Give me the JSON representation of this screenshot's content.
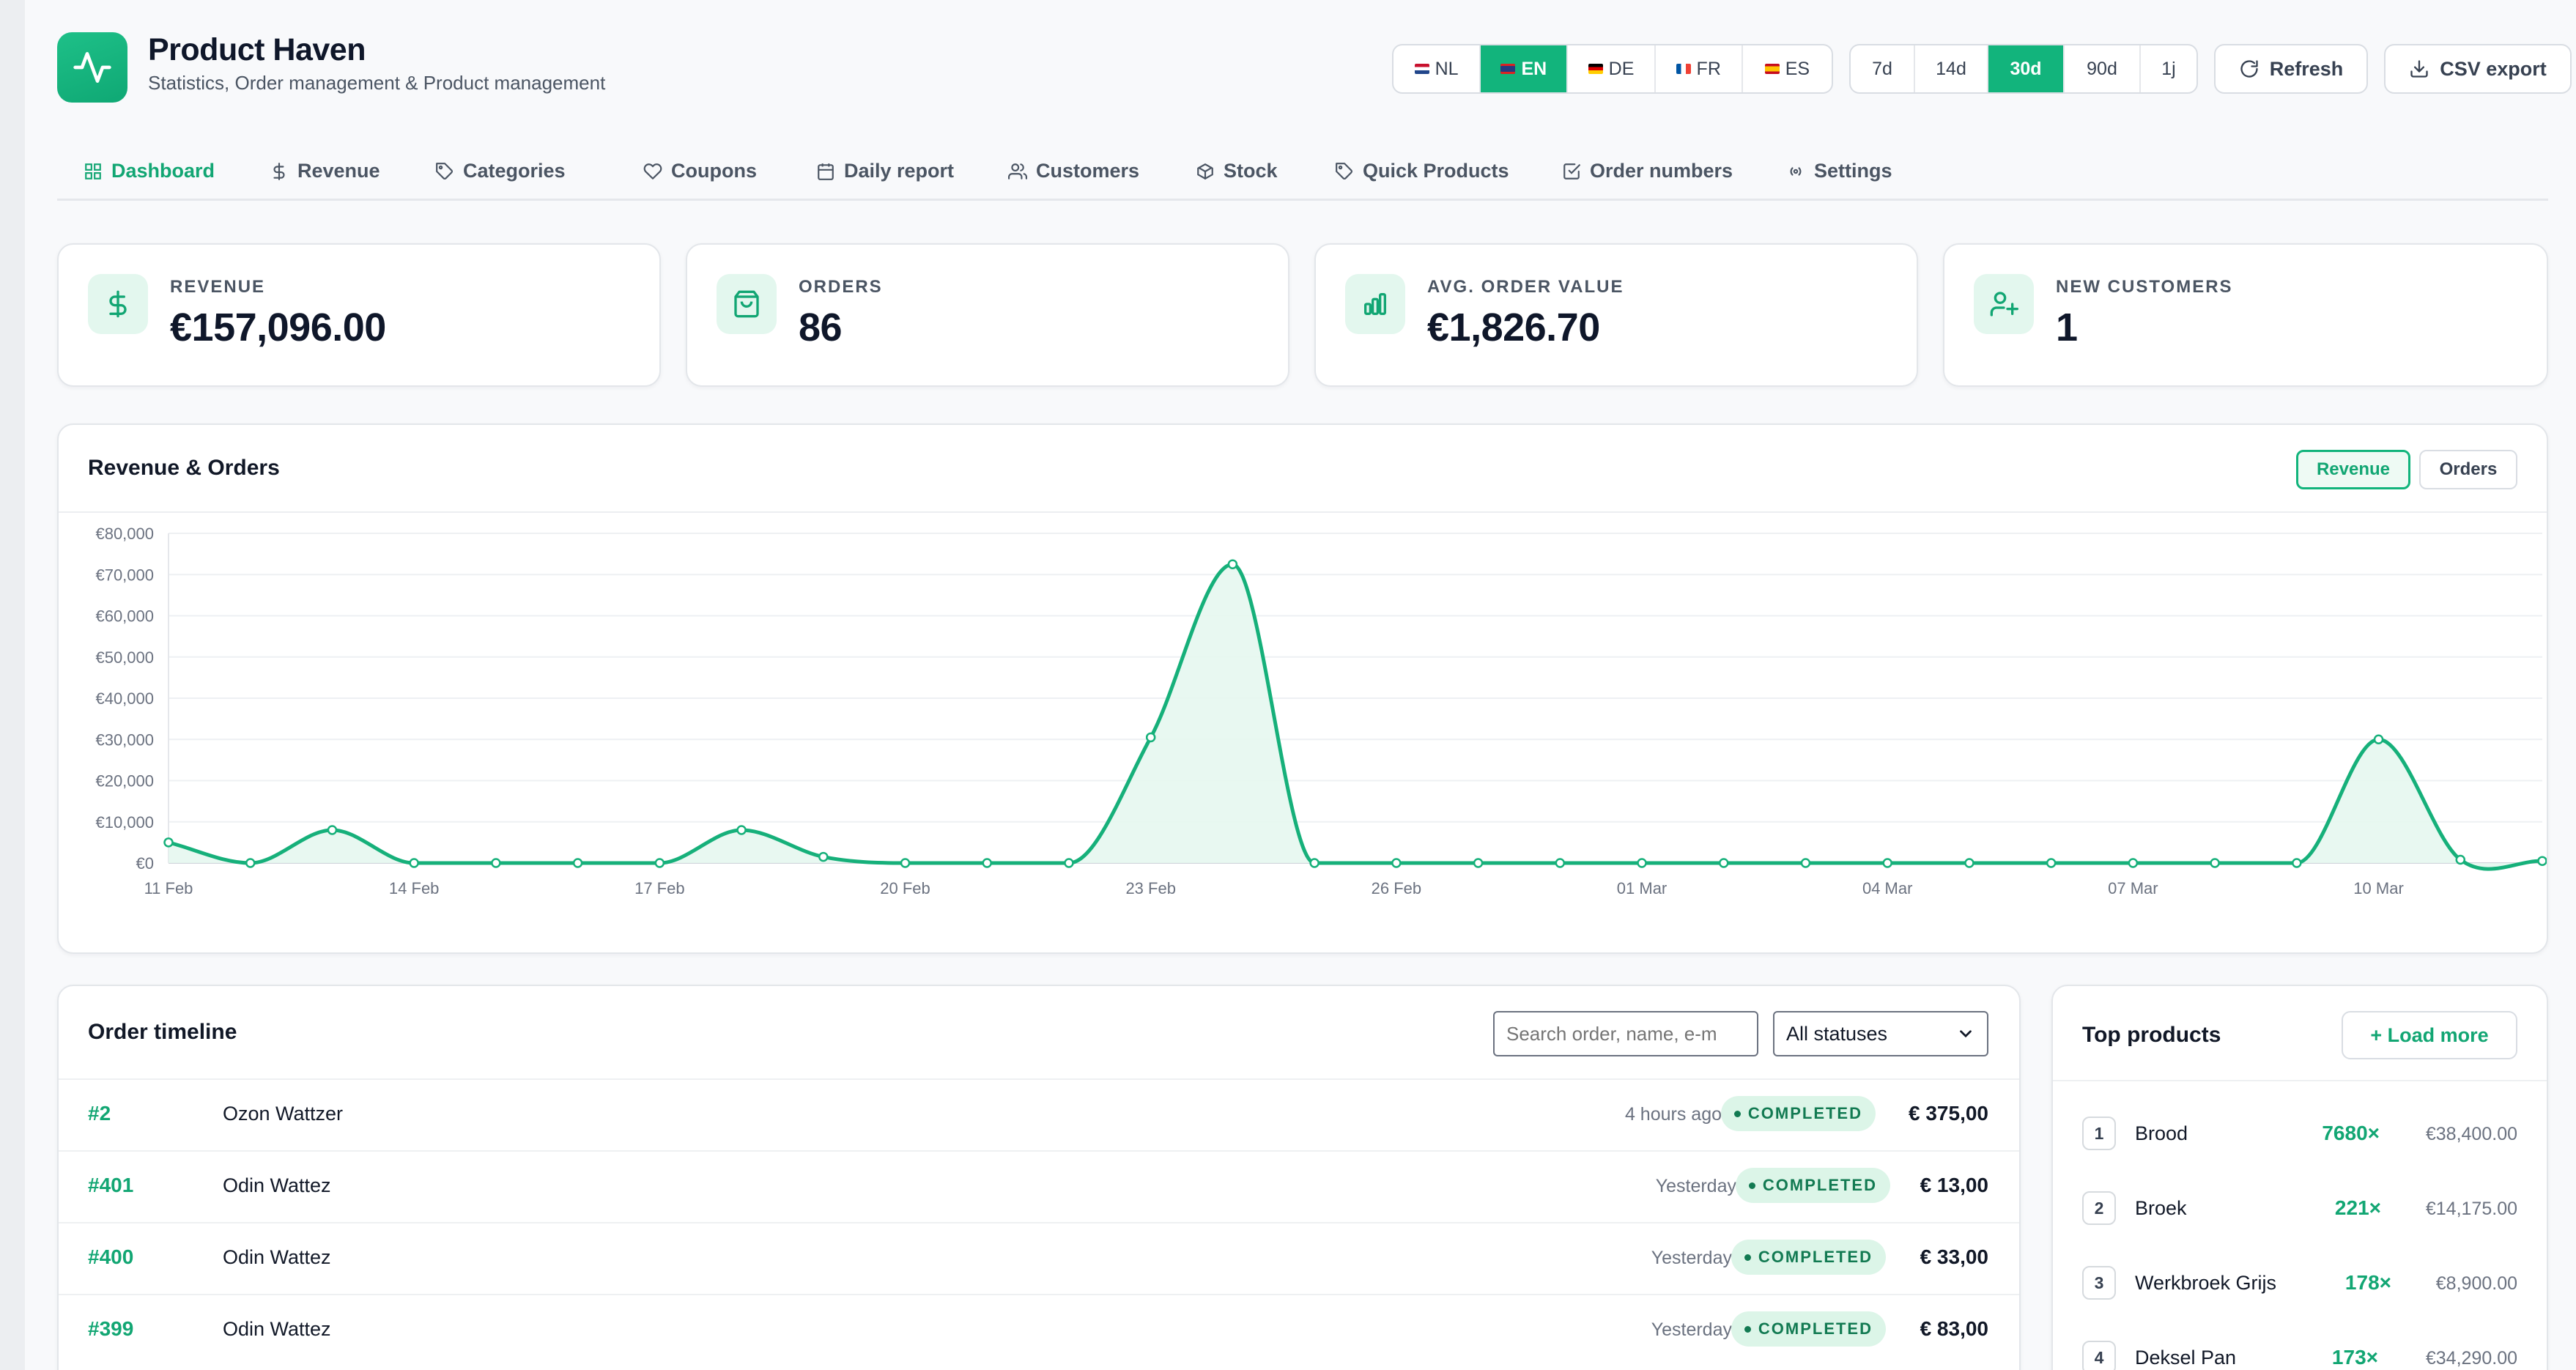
{
  "brand": {
    "title": "Product Haven",
    "subtitle": "Statistics, Order management & Product management"
  },
  "languages": [
    {
      "code": "NL",
      "active": false
    },
    {
      "code": "EN",
      "active": true
    },
    {
      "code": "DE",
      "active": false
    },
    {
      "code": "FR",
      "active": false
    },
    {
      "code": "ES",
      "active": false
    }
  ],
  "ranges": [
    {
      "label": "7d",
      "active": false
    },
    {
      "label": "14d",
      "active": false
    },
    {
      "label": "30d",
      "active": true
    },
    {
      "label": "90d",
      "active": false
    },
    {
      "label": "1j",
      "active": false
    }
  ],
  "actions": {
    "refresh": "Refresh",
    "csv": "CSV export"
  },
  "tabs": [
    {
      "label": "Dashboard",
      "icon": "grid-icon",
      "active": true
    },
    {
      "label": "Revenue",
      "icon": "dollar-icon",
      "active": false
    },
    {
      "label": "Categories",
      "icon": "tag-icon",
      "active": false
    },
    {
      "label": "Coupons",
      "icon": "heart-icon",
      "active": false
    },
    {
      "label": "Daily report",
      "icon": "calendar-icon",
      "active": false
    },
    {
      "label": "Customers",
      "icon": "users-icon",
      "active": false
    },
    {
      "label": "Stock",
      "icon": "box-icon",
      "active": false
    },
    {
      "label": "Quick Products",
      "icon": "tag-icon",
      "active": false
    },
    {
      "label": "Order numbers",
      "icon": "checkbox-icon",
      "active": false
    },
    {
      "label": "Settings",
      "icon": "broadcast-icon",
      "active": false
    }
  ],
  "stats": [
    {
      "label": "REVENUE",
      "value": "€157,096.00",
      "icon": "dollar-icon"
    },
    {
      "label": "ORDERS",
      "value": "86",
      "icon": "shopping-bag-icon"
    },
    {
      "label": "AVG. ORDER VALUE",
      "value": "€1,826.70",
      "icon": "bar-chart-icon"
    },
    {
      "label": "NEW CUSTOMERS",
      "value": "1",
      "icon": "user-plus-icon"
    }
  ],
  "chart": {
    "title": "Revenue & Orders",
    "toggle_revenue": "Revenue",
    "toggle_orders": "Orders",
    "active_toggle": "Revenue"
  },
  "chart_data": {
    "type": "area",
    "x": [
      "11 Feb",
      "12 Feb",
      "13 Feb",
      "14 Feb",
      "15 Feb",
      "16 Feb",
      "17 Feb",
      "18 Feb",
      "19 Feb",
      "20 Feb",
      "21 Feb",
      "22 Feb",
      "23 Feb",
      "24 Feb",
      "25 Feb",
      "26 Feb",
      "27 Feb",
      "28 Feb",
      "01 Mar",
      "02 Mar",
      "03 Mar",
      "04 Mar",
      "05 Mar",
      "06 Mar",
      "07 Mar",
      "08 Mar",
      "09 Mar",
      "10 Mar",
      "11 Mar",
      "12 Mar"
    ],
    "x_tick_labels": [
      "11 Feb",
      "14 Feb",
      "17 Feb",
      "20 Feb",
      "23 Feb",
      "26 Feb",
      "01 Mar",
      "04 Mar",
      "07 Mar",
      "10 Mar"
    ],
    "series": [
      {
        "values": [
          5000,
          0,
          8000,
          0,
          0,
          0,
          0,
          8000,
          1500,
          0,
          0,
          0,
          30500,
          72500,
          0,
          0,
          0,
          0,
          0,
          0,
          0,
          0,
          0,
          0,
          0,
          0,
          0,
          30000,
          800,
          500
        ]
      }
    ],
    "y_tick_labels": [
      "€0",
      "€10,000",
      "€20,000",
      "€30,000",
      "€40,000",
      "€50,000",
      "€60,000",
      "€70,000",
      "€80,000"
    ],
    "ylim": [
      0,
      80000
    ],
    "grid": true,
    "color": "#16b07a",
    "fill": "#e6f7ef"
  },
  "orders": {
    "title": "Order timeline",
    "search_placeholder": "Search order, name, e-m",
    "status_filter": "All statuses",
    "rows": [
      {
        "number": "#2",
        "name": "Ozon Wattzer",
        "when": "4 hours ago",
        "status": "COMPLETED",
        "amount": "€ 375,00"
      },
      {
        "number": "#401",
        "name": "Odin Wattez",
        "when": "Yesterday",
        "status": "COMPLETED",
        "amount": "€ 13,00"
      },
      {
        "number": "#400",
        "name": "Odin Wattez",
        "when": "Yesterday",
        "status": "COMPLETED",
        "amount": "€ 33,00"
      },
      {
        "number": "#399",
        "name": "Odin Wattez",
        "when": "Yesterday",
        "status": "COMPLETED",
        "amount": "€ 83,00"
      }
    ]
  },
  "products": {
    "title": "Top products",
    "load_more": "+ Load more",
    "rows": [
      {
        "rank": "1",
        "name": "Brood",
        "qty": "7680×",
        "revenue": "€38,400.00"
      },
      {
        "rank": "2",
        "name": "Broek",
        "qty": "221×",
        "revenue": "€14,175.00"
      },
      {
        "rank": "3",
        "name": "Werkbroek Grijs",
        "qty": "178×",
        "revenue": "€8,900.00"
      },
      {
        "rank": "4",
        "name": "Deksel Pan",
        "qty": "173×",
        "revenue": "€34,290.00"
      }
    ]
  },
  "colors": {
    "accent": "#12b47c",
    "accent_text": "#12a673",
    "badge_bg": "#dcf5e8",
    "badge_text": "#127a52"
  }
}
